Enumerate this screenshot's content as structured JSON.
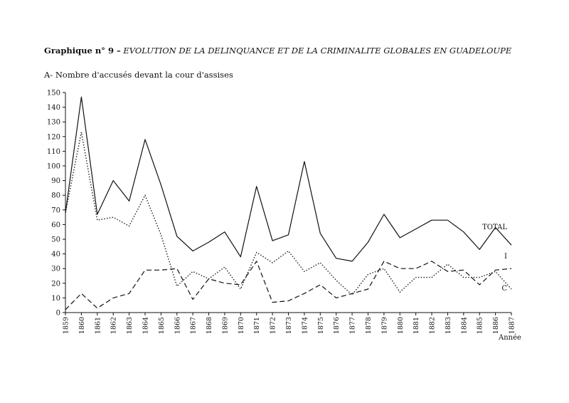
{
  "heading": {
    "lead": "Graphique n° 9 –",
    "rest": "EVOLUTION DE LA DELINQUANCE ET DE LA CRIMINALITE GLOBALES EN GUADELOUPE"
  },
  "subtitle": "A- Nombre d'accusés devant la cour d'assises",
  "chart_data": {
    "type": "line",
    "title": "",
    "xlabel": "Année",
    "ylabel": "",
    "ylim": [
      0,
      150
    ],
    "yticks": [
      0,
      10,
      20,
      30,
      40,
      50,
      60,
      70,
      80,
      90,
      100,
      110,
      120,
      130,
      140,
      150
    ],
    "grid": false,
    "legend": "direct labels at right end of each line",
    "x": [
      "1859",
      "1860",
      "1861",
      "1862",
      "1863",
      "1864",
      "1865",
      "1866",
      "1867",
      "1868",
      "1869",
      "1870",
      "1871",
      "1872",
      "1873",
      "1874",
      "1875",
      "1876",
      "1877",
      "1878",
      "1879",
      "1880",
      "1881",
      "1882",
      "1883",
      "1884",
      "1885",
      "1886",
      "1887"
    ],
    "series": [
      {
        "name": "TOTAL",
        "style": "solid",
        "values": [
          68,
          147,
          67,
          90,
          76,
          118,
          87,
          52,
          42,
          48,
          55,
          38,
          86,
          49,
          53,
          103,
          54,
          37,
          35,
          48,
          67,
          51,
          57,
          63,
          63,
          55,
          43,
          58,
          46
        ]
      },
      {
        "name": "I",
        "style": "dashed",
        "values": [
          2,
          13,
          3,
          10,
          13,
          29,
          29,
          30,
          9,
          23,
          20,
          19,
          35,
          7,
          8,
          13,
          19,
          10,
          13,
          16,
          35,
          30,
          30,
          35,
          28,
          29,
          19,
          29,
          30
        ]
      },
      {
        "name": "C",
        "style": "dotted",
        "values": [
          68,
          123,
          63,
          65,
          59,
          80,
          53,
          18,
          28,
          23,
          31,
          16,
          41,
          34,
          42,
          28,
          34,
          22,
          12,
          26,
          30,
          14,
          24,
          24,
          33,
          24,
          24,
          28,
          16
        ]
      }
    ]
  }
}
